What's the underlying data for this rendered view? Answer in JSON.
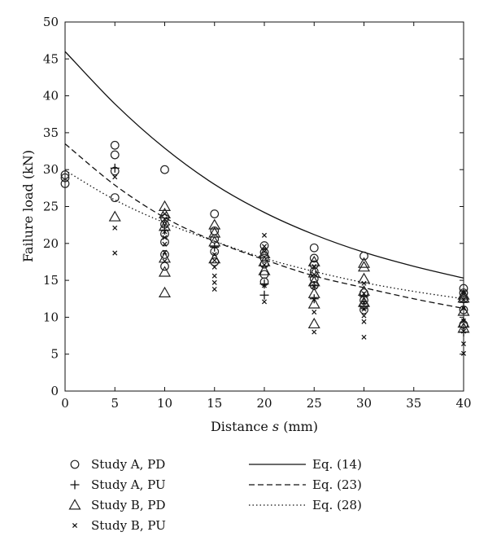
{
  "chart_data": {
    "type": "scatter",
    "xlabel": "Distance s (mm)",
    "xlabel_parts": {
      "before": "Distance ",
      "italic": "s",
      "after": " (mm)"
    },
    "ylabel": "Failure load (kN)",
    "xlim": [
      0,
      40
    ],
    "ylim": [
      0,
      50
    ],
    "x_ticks": [
      0,
      5,
      10,
      15,
      20,
      25,
      30,
      35,
      40
    ],
    "y_ticks": [
      0,
      5,
      10,
      15,
      20,
      25,
      30,
      35,
      40,
      45,
      50
    ],
    "grid": false,
    "legend_position": "below",
    "series": [
      {
        "name": "Study A, PD",
        "marker": "circle",
        "points": [
          [
            0,
            28.1
          ],
          [
            0,
            28.9
          ],
          [
            0,
            29.3
          ],
          [
            5,
            26.2
          ],
          [
            5,
            29.8
          ],
          [
            5,
            32.0
          ],
          [
            5,
            33.3
          ],
          [
            10,
            16.9
          ],
          [
            10,
            18.5
          ],
          [
            10,
            20.2
          ],
          [
            10,
            21.3
          ],
          [
            10,
            22.6
          ],
          [
            10,
            23.4
          ],
          [
            10,
            30.0
          ],
          [
            15,
            17.5
          ],
          [
            15,
            18.9
          ],
          [
            15,
            20.6
          ],
          [
            15,
            21.7
          ],
          [
            15,
            24.0
          ],
          [
            20,
            14.8
          ],
          [
            20,
            15.8
          ],
          [
            20,
            17.2
          ],
          [
            20,
            18.0
          ],
          [
            20,
            18.8
          ],
          [
            20,
            19.7
          ],
          [
            25,
            14.3
          ],
          [
            25,
            15.2
          ],
          [
            25,
            16.2
          ],
          [
            25,
            17.1
          ],
          [
            25,
            18.0
          ],
          [
            25,
            19.4
          ],
          [
            30,
            11.0
          ],
          [
            30,
            11.6
          ],
          [
            30,
            12.3
          ],
          [
            30,
            13.3
          ],
          [
            30,
            18.3
          ],
          [
            40,
            9.0
          ],
          [
            40,
            11.0
          ],
          [
            40,
            12.5
          ],
          [
            40,
            13.3
          ],
          [
            40,
            13.9
          ]
        ]
      },
      {
        "name": "Study A, PU",
        "marker": "plus",
        "points": [
          [
            5,
            30.2
          ],
          [
            10,
            21.8
          ],
          [
            15,
            19.5
          ],
          [
            20,
            13.0
          ],
          [
            20,
            14.5
          ],
          [
            25,
            12.5
          ],
          [
            25,
            14.3
          ],
          [
            30,
            11.5
          ],
          [
            30,
            12.8
          ],
          [
            40,
            8.0
          ],
          [
            40,
            12.0
          ]
        ]
      },
      {
        "name": "Study B, PD",
        "marker": "triangle",
        "points": [
          [
            5,
            23.6
          ],
          [
            10,
            13.3
          ],
          [
            10,
            16.1
          ],
          [
            10,
            18.0
          ],
          [
            10,
            22.3
          ],
          [
            10,
            24.0
          ],
          [
            10,
            25.0
          ],
          [
            15,
            17.9
          ],
          [
            15,
            20.2
          ],
          [
            15,
            21.4
          ],
          [
            15,
            22.5
          ],
          [
            20,
            16.3
          ],
          [
            20,
            17.5
          ],
          [
            20,
            18.6
          ],
          [
            25,
            9.1
          ],
          [
            25,
            11.8
          ],
          [
            25,
            13.2
          ],
          [
            25,
            14.8
          ],
          [
            25,
            16.0
          ],
          [
            25,
            17.5
          ],
          [
            30,
            12.0
          ],
          [
            30,
            13.5
          ],
          [
            30,
            15.2
          ],
          [
            30,
            16.8
          ],
          [
            30,
            17.3
          ],
          [
            40,
            8.5
          ],
          [
            40,
            9.2
          ],
          [
            40,
            10.8
          ],
          [
            40,
            12.6
          ],
          [
            40,
            13.0
          ]
        ]
      },
      {
        "name": "Study B, PU",
        "marker": "cross",
        "points": [
          [
            5,
            18.7
          ],
          [
            5,
            22.1
          ],
          [
            5,
            29.0
          ],
          [
            10,
            17.6
          ],
          [
            10,
            18.8
          ],
          [
            10,
            19.9
          ],
          [
            10,
            20.8
          ],
          [
            10,
            21.6
          ],
          [
            10,
            22.5
          ],
          [
            10,
            23.3
          ],
          [
            10,
            24.0
          ],
          [
            15,
            13.8
          ],
          [
            15,
            14.7
          ],
          [
            15,
            15.6
          ],
          [
            15,
            16.8
          ],
          [
            15,
            17.7
          ],
          [
            15,
            18.5
          ],
          [
            20,
            12.1
          ],
          [
            20,
            14.3
          ],
          [
            20,
            17.1
          ],
          [
            20,
            18.9
          ],
          [
            20,
            19.6
          ],
          [
            20,
            21.1
          ],
          [
            25,
            8.0
          ],
          [
            25,
            10.7
          ],
          [
            25,
            12.4
          ],
          [
            25,
            14.2
          ],
          [
            25,
            15.8
          ],
          [
            25,
            16.9
          ],
          [
            30,
            7.3
          ],
          [
            30,
            9.4
          ],
          [
            30,
            10.2
          ],
          [
            30,
            11.1
          ],
          [
            30,
            12.0
          ],
          [
            30,
            13.2
          ],
          [
            30,
            14.6
          ],
          [
            40,
            5.1
          ],
          [
            40,
            6.4
          ],
          [
            40,
            8.1
          ],
          [
            40,
            9.5
          ],
          [
            40,
            11.2
          ],
          [
            40,
            12.4
          ],
          [
            40,
            13.4
          ]
        ]
      }
    ],
    "curves": [
      {
        "name": "Eq. (14)",
        "style": "solid",
        "points": [
          [
            0,
            46.0
          ],
          [
            5,
            38.9
          ],
          [
            10,
            32.9
          ],
          [
            15,
            28.0
          ],
          [
            20,
            24.2
          ],
          [
            25,
            21.2
          ],
          [
            30,
            18.8
          ],
          [
            35,
            16.9
          ],
          [
            40,
            15.3
          ]
        ]
      },
      {
        "name": "Eq. (23)",
        "style": "dashed",
        "points": [
          [
            0,
            33.5
          ],
          [
            5,
            27.9
          ],
          [
            10,
            23.5
          ],
          [
            15,
            20.3
          ],
          [
            20,
            17.8
          ],
          [
            25,
            15.6
          ],
          [
            30,
            14.0
          ],
          [
            35,
            12.5
          ],
          [
            40,
            11.2
          ]
        ]
      },
      {
        "name": "Eq. (28)",
        "style": "dotted",
        "points": [
          [
            0,
            29.9
          ],
          [
            5,
            25.9
          ],
          [
            10,
            22.8
          ],
          [
            15,
            20.3
          ],
          [
            20,
            18.0
          ],
          [
            25,
            16.2
          ],
          [
            30,
            14.7
          ],
          [
            35,
            13.5
          ],
          [
            40,
            12.5
          ]
        ]
      }
    ]
  }
}
